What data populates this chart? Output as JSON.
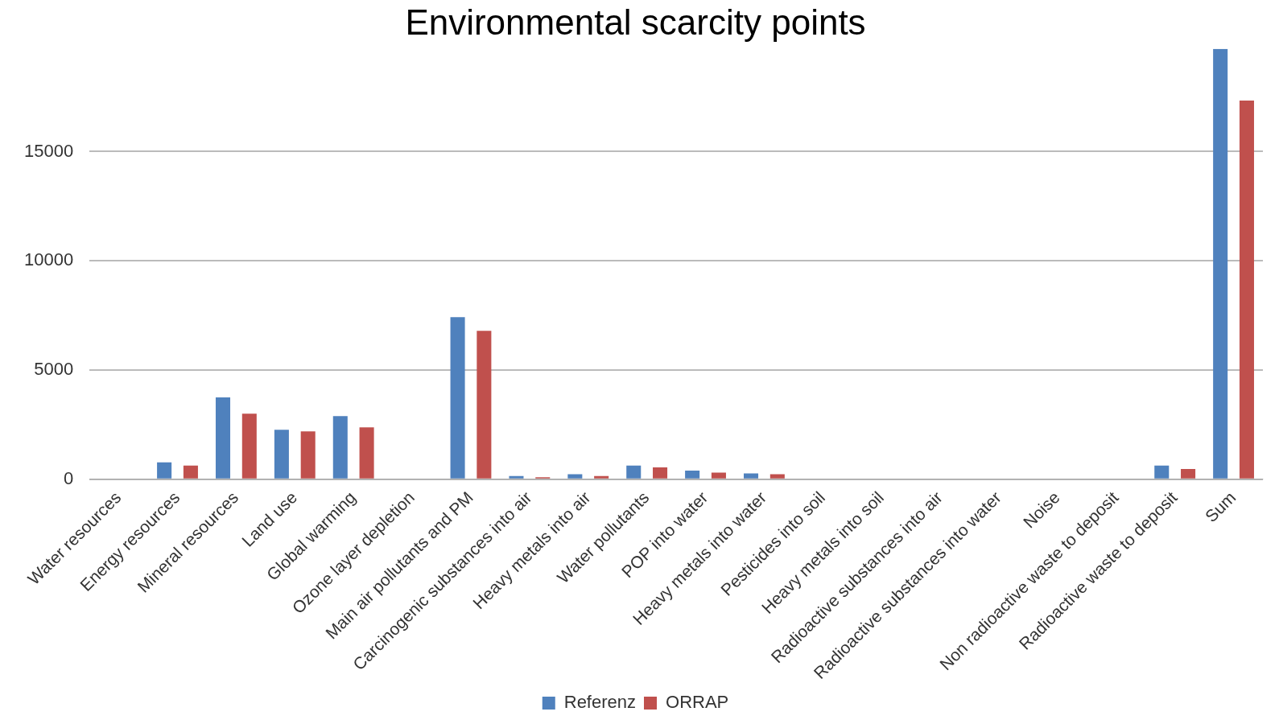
{
  "chart_data": {
    "type": "bar",
    "title": "Environmental scarcity points",
    "categories": [
      "Water resources",
      "Energy resources",
      "Mineral resources",
      "Land use",
      "Global warming",
      "Ozone layer depletion",
      "Main air pollutants and PM",
      "Carcinogenic substances into air",
      "Heavy metals into air",
      "Water pollutants",
      "POP into water",
      "Heavy metals into water",
      "Pesticides into soil",
      "Heavy metals into soil",
      "Radioactive substances into air",
      "Radioactive substances into water",
      "Noise",
      "Non radioactive waste to deposit",
      "Radioactive waste to deposit",
      "Sum"
    ],
    "series": [
      {
        "name": "Referenz",
        "color": "#4f81bd",
        "values": [
          0,
          780,
          3750,
          2270,
          2890,
          0,
          7420,
          150,
          230,
          625,
          400,
          270,
          0,
          0,
          0,
          0,
          0,
          0,
          625,
          19700
        ]
      },
      {
        "name": "ORRAP",
        "color": "#c0504d",
        "values": [
          0,
          625,
          3000,
          2190,
          2380,
          0,
          6800,
          100,
          150,
          550,
          310,
          230,
          0,
          0,
          0,
          0,
          0,
          0,
          470,
          17340
        ]
      }
    ],
    "ylim": [
      0,
      19700
    ],
    "yticks": [
      0,
      5000,
      10000,
      15000
    ],
    "grid": "y",
    "legend": "bottom"
  }
}
